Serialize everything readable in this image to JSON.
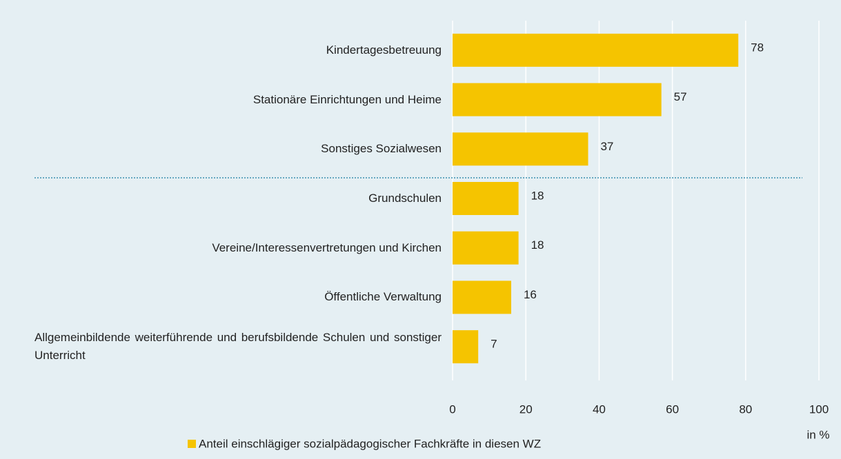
{
  "chart_data": {
    "type": "bar",
    "orientation": "horizontal",
    "categories": [
      "Kindertagesbetreuung",
      "Stationäre Einrichtungen und Heime",
      "Sonstiges Sozialwesen",
      "Grundschulen",
      "Vereine/Interessenvertretungen und Kirchen",
      "Öffentliche Verwaltung",
      "Allgemeinbildende weiterführende und berufsbildende Schulen und sonstiger Unterricht"
    ],
    "series": [
      {
        "name": "Anteil einschlägiger sozialpädagogischer Fachkräfte in diesen WZ",
        "color": "#f5c400",
        "values": [
          78,
          57,
          37,
          18,
          18,
          16,
          7
        ]
      }
    ],
    "xlim": [
      0,
      100
    ],
    "xticks": [
      0,
      20,
      40,
      60,
      80,
      100
    ],
    "x_label": "in %",
    "grid": true,
    "legend": "bottom"
  }
}
